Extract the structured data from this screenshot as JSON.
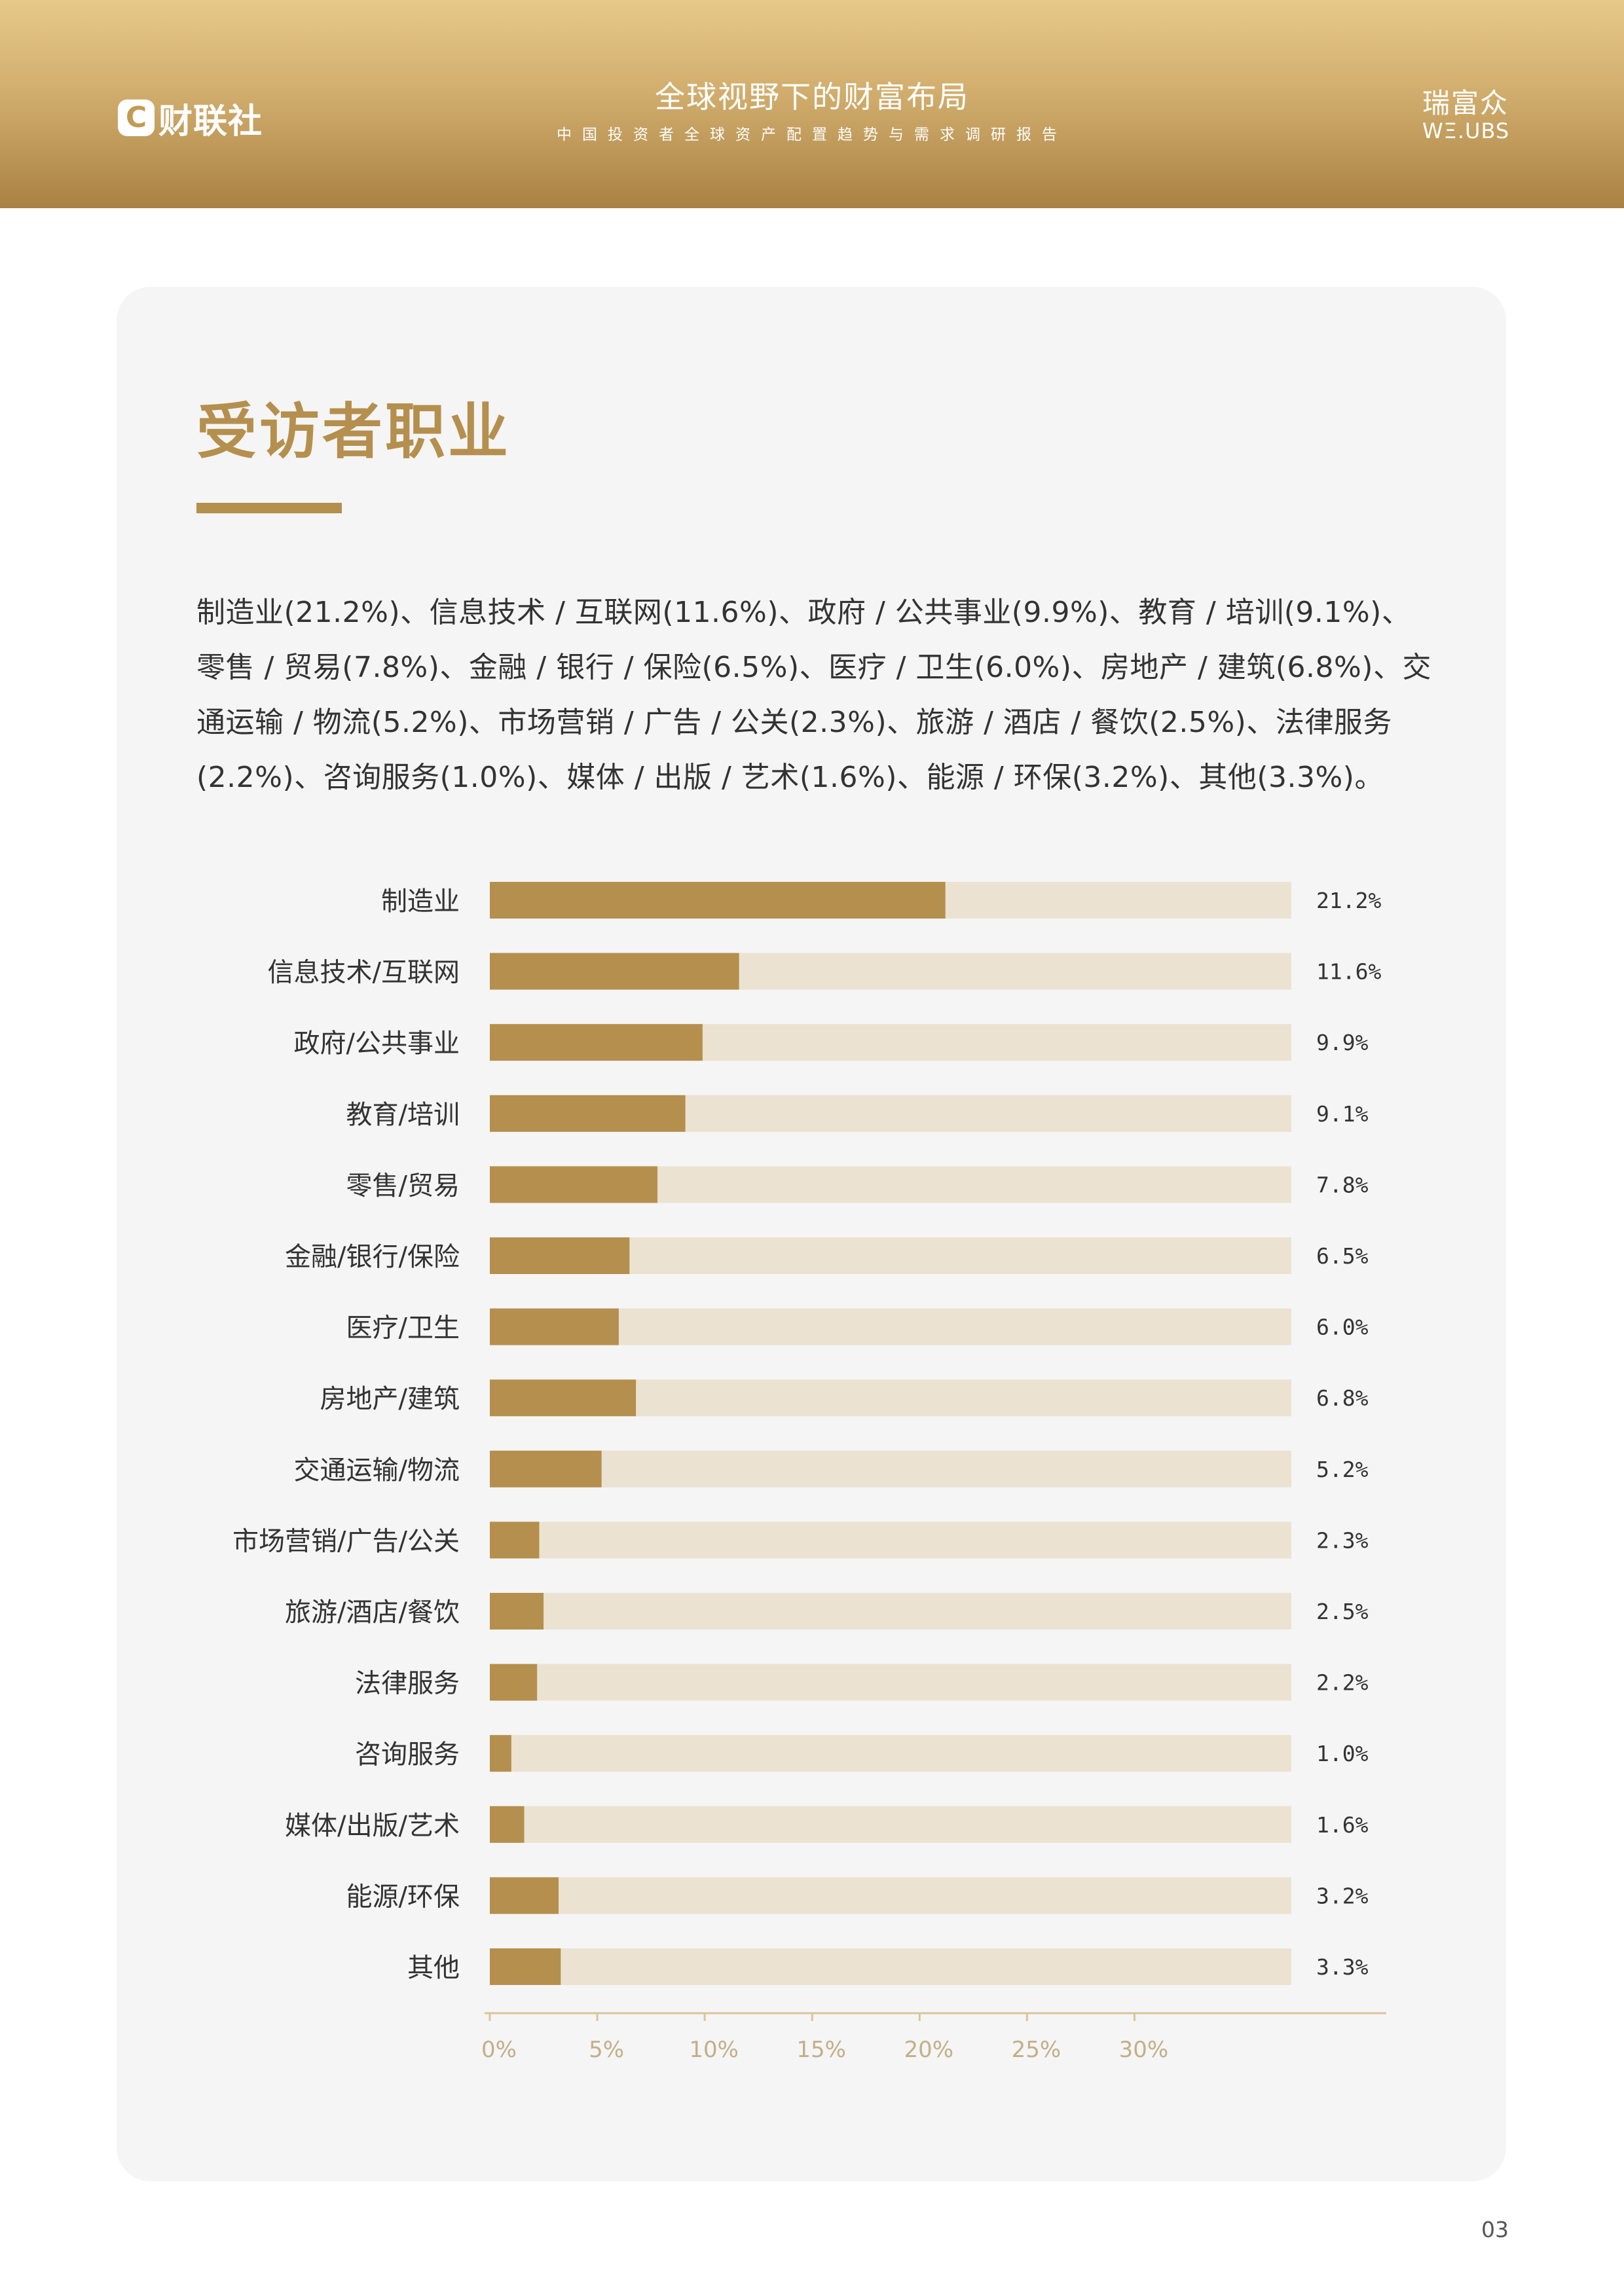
{
  "header": {
    "title": "全球视野下的财富布局",
    "subtitle": "中国投资者全球资产配置趋势与需求调研报告",
    "left_logo_text": "财联社",
    "left_logo_glyph": "C",
    "right_logo_cn": "瑞富众",
    "right_logo_en": "WΞ.UBS"
  },
  "section": {
    "title": "受访者职业",
    "description": "制造业(21.2%)、信息技术 / 互联网(11.6%)、政府 / 公共事业(9.9%)、教育 / 培训(9.1%)、零售 / 贸易(7.8%)、金融 / 银行 / 保险(6.5%)、医疗 / 卫生(6.0%)、房地产 / 建筑(6.8%)、交通运输 / 物流(5.2%)、市场营销 / 广告 / 公关(2.3%)、旅游 / 酒店 / 餐饮(2.5%)、法律服务(2.2%)、咨询服务(1.0%)、媒体 / 出版 / 艺术(1.6%)、能源 / 环保(3.2%)、其他(3.3%)。"
  },
  "chart_data": {
    "type": "bar",
    "orientation": "horizontal",
    "categories": [
      "制造业",
      "信息技术/互联网",
      "政府/公共事业",
      "教育/培训",
      "零售/贸易",
      "金融/银行/保险",
      "医疗/卫生",
      "房地产/建筑",
      "交通运输/物流",
      "市场营销/广告/公关",
      "旅游/酒店/餐饮",
      "法律服务",
      "咨询服务",
      "媒体/出版/艺术",
      "能源/环保",
      "其他"
    ],
    "values": [
      21.2,
      11.6,
      9.9,
      9.1,
      7.8,
      6.5,
      6.0,
      6.8,
      5.2,
      2.3,
      2.5,
      2.2,
      1.0,
      1.6,
      3.2,
      3.3
    ],
    "value_labels": [
      "21.2%",
      "11.6%",
      "9.9%",
      "9.1%",
      "7.8%",
      "6.5%",
      "6.0%",
      "6.8%",
      "5.2%",
      "2.3%",
      "2.5%",
      "2.2%",
      "1.0%",
      "1.6%",
      "3.2%",
      "3.3%"
    ],
    "track_max": 37.3,
    "x_ticks": [
      0,
      5,
      10,
      15,
      20,
      25,
      30
    ],
    "x_tick_labels": [
      "0%",
      "5%",
      "10%",
      "15%",
      "20%",
      "25%",
      "30%"
    ],
    "title": "",
    "xlabel": "",
    "ylabel": "",
    "grid": false,
    "colors": {
      "bar": "#b58f4e",
      "track": "#ebe2d1",
      "axis": "#d9c59a",
      "tick_label": "#c3ae88",
      "category_label": "#333333",
      "value_label": "#333333"
    }
  },
  "footer": {
    "page_number": "03"
  }
}
